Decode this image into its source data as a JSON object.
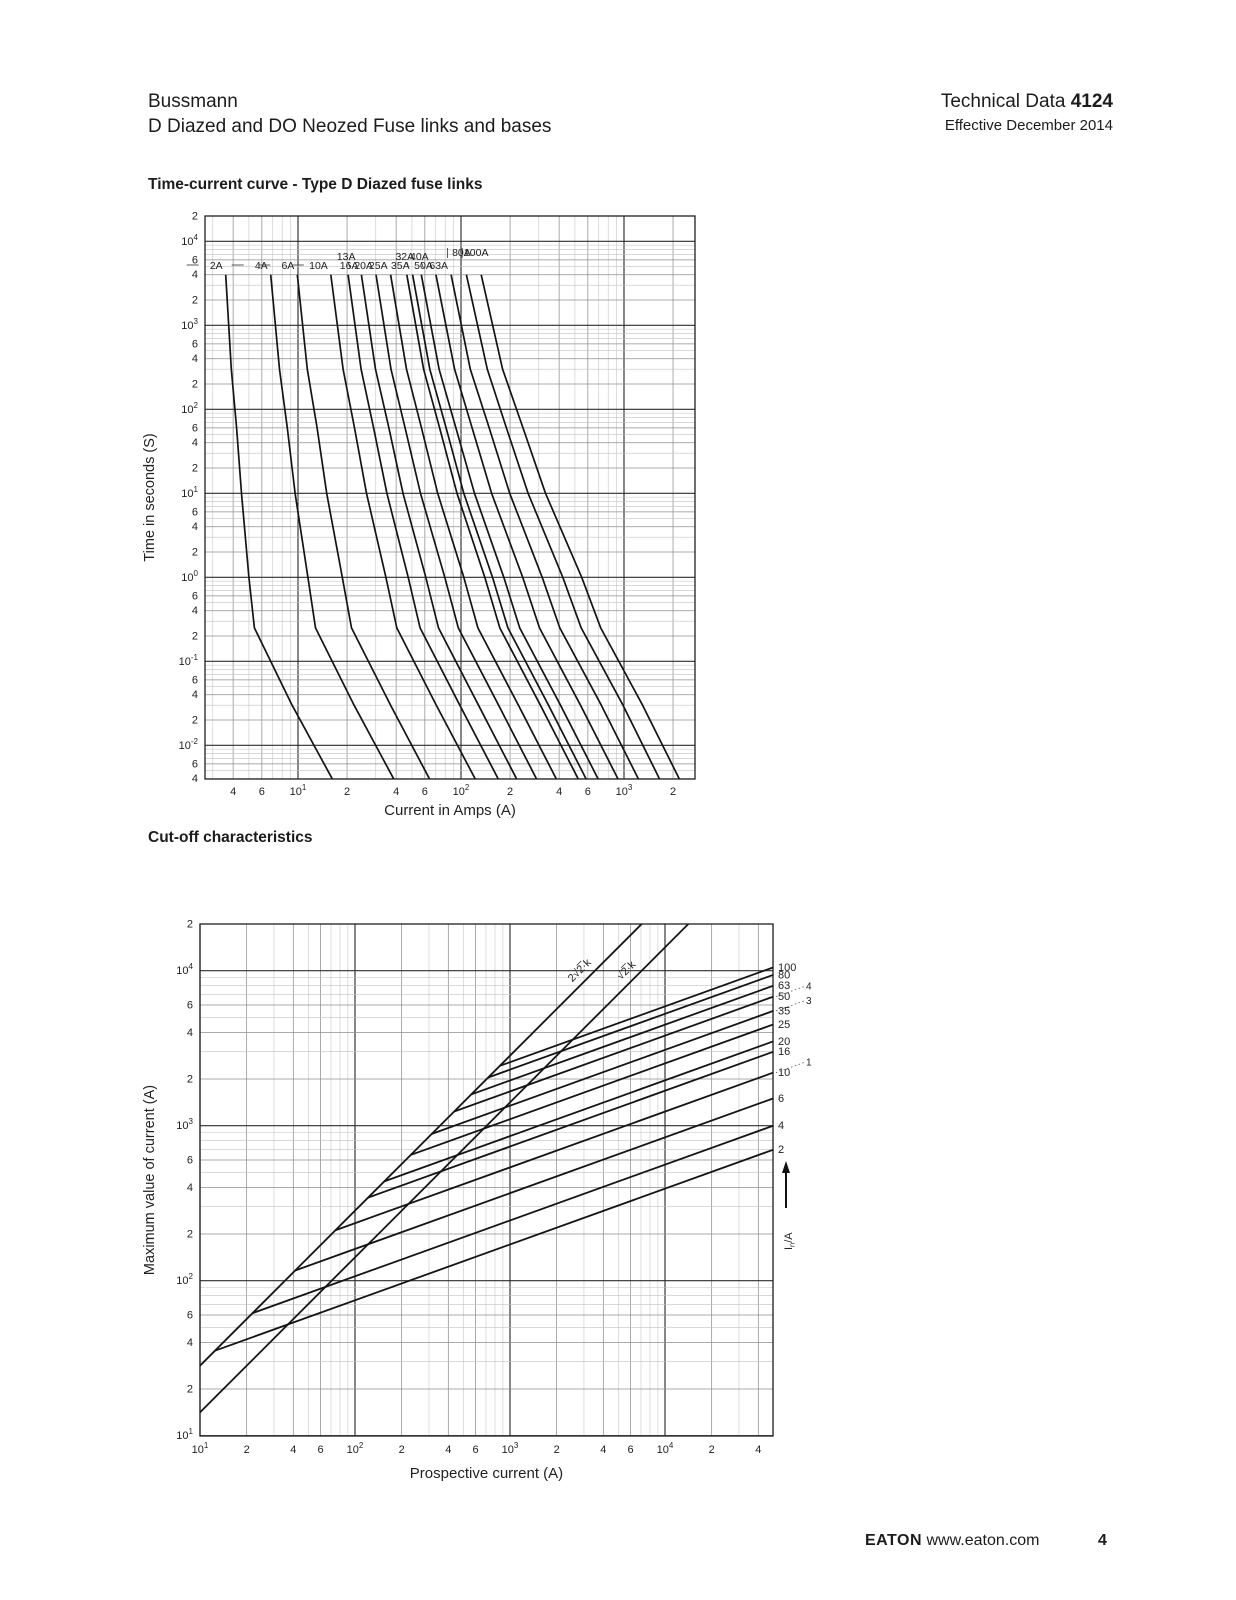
{
  "page": {
    "header": {
      "brand": "Bussmann",
      "subtitle": "D Diazed and DO Neozed Fuse links and bases",
      "doc_label": "Technical Data",
      "doc_number": "4124",
      "effective": "Effective December 2014"
    },
    "sections": [
      {
        "title": "Time-current curve - Type D Diazed fuse links"
      },
      {
        "title": "Cut-off characteristics"
      }
    ],
    "footer": {
      "brand": "EATON",
      "url": "www.eaton.com",
      "page_number": "4"
    }
  },
  "chart_data": [
    {
      "type": "line",
      "title": "Time-current curve - Type D Diazed fuse links",
      "xlabel": "Current in Amps (A)",
      "ylabel": "Time in seconds (S)",
      "x_scale": "log",
      "y_scale": "log",
      "grid": "log-minor",
      "xlim": [
        2.7,
        2730
      ],
      "ylim": [
        0.004,
        20000
      ],
      "x_ticks": [
        {
          "v": 4,
          "l": "4"
        },
        {
          "v": 6,
          "l": "6"
        },
        {
          "v": 10,
          "l": "10",
          "sup": "1"
        },
        {
          "v": 20,
          "l": "2"
        },
        {
          "v": 40,
          "l": "4"
        },
        {
          "v": 60,
          "l": "6"
        },
        {
          "v": 100,
          "l": "10",
          "sup": "2"
        },
        {
          "v": 200,
          "l": "2"
        },
        {
          "v": 400,
          "l": "4"
        },
        {
          "v": 600,
          "l": "6"
        },
        {
          "v": 1000,
          "l": "10",
          "sup": "3"
        },
        {
          "v": 2000,
          "l": "2"
        }
      ],
      "y_ticks": [
        {
          "v": 20000,
          "l": "2"
        },
        {
          "v": 10000,
          "l": "10",
          "sup": "4"
        },
        {
          "v": 6000,
          "l": "6"
        },
        {
          "v": 4000,
          "l": "4"
        },
        {
          "v": 2000,
          "l": "2"
        },
        {
          "v": 1000,
          "l": "10",
          "sup": "3"
        },
        {
          "v": 600,
          "l": "6"
        },
        {
          "v": 400,
          "l": "4"
        },
        {
          "v": 200,
          "l": "2"
        },
        {
          "v": 100,
          "l": "10",
          "sup": "2"
        },
        {
          "v": 60,
          "l": "6"
        },
        {
          "v": 40,
          "l": "4"
        },
        {
          "v": 20,
          "l": "2"
        },
        {
          "v": 10,
          "l": "10",
          "sup": "1"
        },
        {
          "v": 6,
          "l": "6"
        },
        {
          "v": 4,
          "l": "4"
        },
        {
          "v": 2,
          "l": "2"
        },
        {
          "v": 1,
          "l": "10",
          "sup": "0"
        },
        {
          "v": 0.6,
          "l": "6"
        },
        {
          "v": 0.4,
          "l": "4"
        },
        {
          "v": 0.2,
          "l": "2"
        },
        {
          "v": 0.1,
          "l": "10",
          "sup": "-1"
        },
        {
          "v": 0.06,
          "l": "6"
        },
        {
          "v": 0.04,
          "l": "4"
        },
        {
          "v": 0.02,
          "l": "2"
        },
        {
          "v": 0.01,
          "l": "10",
          "sup": "-2"
        },
        {
          "v": 0.006,
          "l": "6"
        },
        {
          "v": 0.004,
          "l": "4"
        }
      ],
      "series": [
        {
          "name": "2A",
          "row": "base",
          "points": [
            [
              3.6,
              4000
            ],
            [
              3.9,
              300
            ],
            [
              4.2,
              60
            ],
            [
              4.5,
              10
            ],
            [
              5.0,
              1
            ],
            [
              5.4,
              0.25
            ],
            [
              9.2,
              0.03
            ],
            [
              16.2,
              0.004
            ]
          ]
        },
        {
          "name": "4A",
          "row": "base",
          "points": [
            [
              6.8,
              4000
            ],
            [
              7.7,
              300
            ],
            [
              8.6,
              60
            ],
            [
              9.6,
              10
            ],
            [
              11.5,
              1
            ],
            [
              12.8,
              0.25
            ],
            [
              22.1,
              0.03
            ],
            [
              38.6,
              0.004
            ]
          ]
        },
        {
          "name": "6A",
          "row": "base",
          "points": [
            [
              9.9,
              4000
            ],
            [
              11.4,
              300
            ],
            [
              13.1,
              60
            ],
            [
              15.0,
              10
            ],
            [
              18.7,
              1
            ],
            [
              21.3,
              0.25
            ],
            [
              37.0,
              0.03
            ],
            [
              64.0,
              0.004
            ]
          ]
        },
        {
          "name": "10A",
          "row": "base",
          "points": [
            [
              15.9,
              4000
            ],
            [
              18.9,
              300
            ],
            [
              22.2,
              60
            ],
            [
              26.3,
              10
            ],
            [
              34.6,
              1
            ],
            [
              40.4,
              0.25
            ],
            [
              70.5,
              0.03
            ],
            [
              122,
              0.004
            ]
          ]
        },
        {
          "name": "13A",
          "row": "raised",
          "points": [
            [
              20.3,
              4000
            ],
            [
              24.4,
              300
            ],
            [
              29.1,
              60
            ],
            [
              35.1,
              10
            ],
            [
              47.4,
              1
            ],
            [
              56.1,
              0.25
            ],
            [
              98.3,
              0.03
            ],
            [
              169,
              0.004
            ]
          ]
        },
        {
          "name": "16A",
          "row": "base",
          "points": [
            [
              24.5,
              4000
            ],
            [
              29.9,
              300
            ],
            [
              36.1,
              60
            ],
            [
              44.1,
              10
            ],
            [
              60.8,
              1
            ],
            [
              72.8,
              0.25
            ],
            [
              128,
              0.03
            ],
            [
              219,
              0.004
            ]
          ]
        },
        {
          "name": "20A",
          "row": "base",
          "points": [
            [
              30.1,
              4000
            ],
            [
              37.2,
              300
            ],
            [
              45.4,
              60
            ],
            [
              56.4,
              10
            ],
            [
              79.6,
              1
            ],
            [
              96.2,
              0.25
            ],
            [
              170,
              0.03
            ],
            [
              290,
              0.004
            ]
          ]
        },
        {
          "name": "25A",
          "row": "base",
          "points": [
            [
              37.0,
              4000
            ],
            [
              46.3,
              300
            ],
            [
              57.2,
              60
            ],
            [
              72.0,
              10
            ],
            [
              104,
              1
            ],
            [
              127,
              0.25
            ],
            [
              225,
              0.03
            ],
            [
              384,
              0.004
            ]
          ]
        },
        {
          "name": "32A",
          "row": "raised",
          "points": [
            [
              46.5,
              4000
            ],
            [
              59.0,
              300
            ],
            [
              73.9,
              60
            ],
            [
              94.5,
              10
            ],
            [
              140,
              1
            ],
            [
              173,
              0.25
            ],
            [
              307,
              0.03
            ],
            [
              523,
              0.004
            ]
          ]
        },
        {
          "name": "35A",
          "row": "base",
          "points": [
            [
              50.5,
              4000
            ],
            [
              64.4,
              300
            ],
            [
              81.0,
              60
            ],
            [
              104,
              10
            ],
            [
              156,
              1
            ],
            [
              194,
              0.25
            ],
            [
              344,
              0.03
            ],
            [
              585,
              0.004
            ]
          ]
        },
        {
          "name": "40A",
          "row": "raised",
          "points": [
            [
              57.1,
              4000
            ],
            [
              73.4,
              300
            ],
            [
              93.1,
              60
            ],
            [
              121,
              10
            ],
            [
              183,
              1
            ],
            [
              229,
              0.25
            ],
            [
              408,
              0.03
            ],
            [
              693,
              0.004
            ]
          ]
        },
        {
          "name": "50A",
          "row": "base",
          "points": [
            [
              70.1,
              4000
            ],
            [
              91.3,
              300
            ],
            [
              117,
              60
            ],
            [
              154,
              10
            ],
            [
              239,
              1
            ],
            [
              303,
              0.25
            ],
            [
              541,
              0.03
            ],
            [
              918,
              0.004
            ]
          ]
        },
        {
          "name": "63A",
          "row": "base",
          "points": [
            [
              86.9,
              4000
            ],
            [
              114,
              300
            ],
            [
              149,
              60
            ],
            [
              199,
              10
            ],
            [
              315,
              1
            ],
            [
              404,
              0.25
            ],
            [
              726,
              0.03
            ],
            [
              1223,
              0.004
            ]
          ]
        },
        {
          "name": "80A",
          "row": "top",
          "points": [
            [
              108,
              4000
            ],
            [
              145,
              300
            ],
            [
              190,
              60
            ],
            [
              258,
              10
            ],
            [
              421,
              1
            ],
            [
              546,
              0.25
            ],
            [
              986,
              0.03
            ],
            [
              1649,
              0.004
            ]
          ]
        },
        {
          "name": "100A",
          "row": "top",
          "points": [
            [
              133,
              4000
            ],
            [
              180,
              300
            ],
            [
              240,
              60
            ],
            [
              330,
              10
            ],
            [
              550,
              1
            ],
            [
              720,
              0.25
            ],
            [
              1300,
              0.03
            ],
            [
              2180,
              0.004
            ]
          ]
        }
      ]
    },
    {
      "type": "line",
      "title": "Cut-off characteristics",
      "xlabel": "Prospective current (A)",
      "ylabel": "Maximum value of current (A)",
      "x_scale": "log",
      "y_scale": "log",
      "grid": "log-minor",
      "xlim": [
        10,
        50000
      ],
      "ylim": [
        10,
        20000
      ],
      "x_ticks": [
        {
          "v": 10,
          "l": "10",
          "sup": "1"
        },
        {
          "v": 20,
          "l": "2"
        },
        {
          "v": 40,
          "l": "4"
        },
        {
          "v": 60,
          "l": "6"
        },
        {
          "v": 100,
          "l": "10",
          "sup": "2"
        },
        {
          "v": 200,
          "l": "2"
        },
        {
          "v": 400,
          "l": "4"
        },
        {
          "v": 600,
          "l": "6"
        },
        {
          "v": 1000,
          "l": "10",
          "sup": "3"
        },
        {
          "v": 2000,
          "l": "2"
        },
        {
          "v": 4000,
          "l": "4"
        },
        {
          "v": 6000,
          "l": "6"
        },
        {
          "v": 10000,
          "l": "10",
          "sup": "4"
        },
        {
          "v": 20000,
          "l": "2"
        },
        {
          "v": 40000,
          "l": "4"
        }
      ],
      "y_ticks": [
        {
          "v": 20000,
          "l": "2"
        },
        {
          "v": 10000,
          "l": "10",
          "sup": "4"
        },
        {
          "v": 6000,
          "l": "6"
        },
        {
          "v": 4000,
          "l": "4"
        },
        {
          "v": 2000,
          "l": "2"
        },
        {
          "v": 1000,
          "l": "10",
          "sup": "3"
        },
        {
          "v": 600,
          "l": "6"
        },
        {
          "v": 400,
          "l": "4"
        },
        {
          "v": 200,
          "l": "2"
        },
        {
          "v": 100,
          "l": "10",
          "sup": "2"
        },
        {
          "v": 60,
          "l": "6"
        },
        {
          "v": 40,
          "l": "4"
        },
        {
          "v": 20,
          "l": "2"
        },
        {
          "v": 10,
          "l": "10",
          "sup": "1"
        }
      ],
      "slope_loglog": 0.36,
      "prospective_end": 50000,
      "diagonals": [
        {
          "label": "2√2̅·k",
          "factor": 2.828
        },
        {
          "label": "√2̅·k",
          "factor": 1.414
        }
      ],
      "series": [
        {
          "rating": "100",
          "cutoff_at_end": 10500
        },
        {
          "rating": "80",
          "cutoff_at_end": 9400
        },
        {
          "rating": "63",
          "cutoff_at_end": 8000
        },
        {
          "rating": "50",
          "cutoff_at_end": 6800
        },
        {
          "rating": "35",
          "cutoff_at_end": 5500
        },
        {
          "rating": "25",
          "cutoff_at_end": 4500
        },
        {
          "rating": "20",
          "cutoff_at_end": 3500
        },
        {
          "rating": "16",
          "cutoff_at_end": 3000
        },
        {
          "rating": "10",
          "cutoff_at_end": 2200
        },
        {
          "rating": "6",
          "cutoff_at_end": 1500
        },
        {
          "rating": "4",
          "cutoff_at_end": 1000
        },
        {
          "rating": "2",
          "cutoff_at_end": 700
        }
      ],
      "annotations": [
        {
          "text": "4",
          "at": 6800
        },
        {
          "text": "3",
          "at": 5500
        },
        {
          "text": "1",
          "at": 2200
        }
      ],
      "right_axis_label": {
        "pre": "I",
        "sub": "n",
        "post": "/A"
      }
    }
  ]
}
